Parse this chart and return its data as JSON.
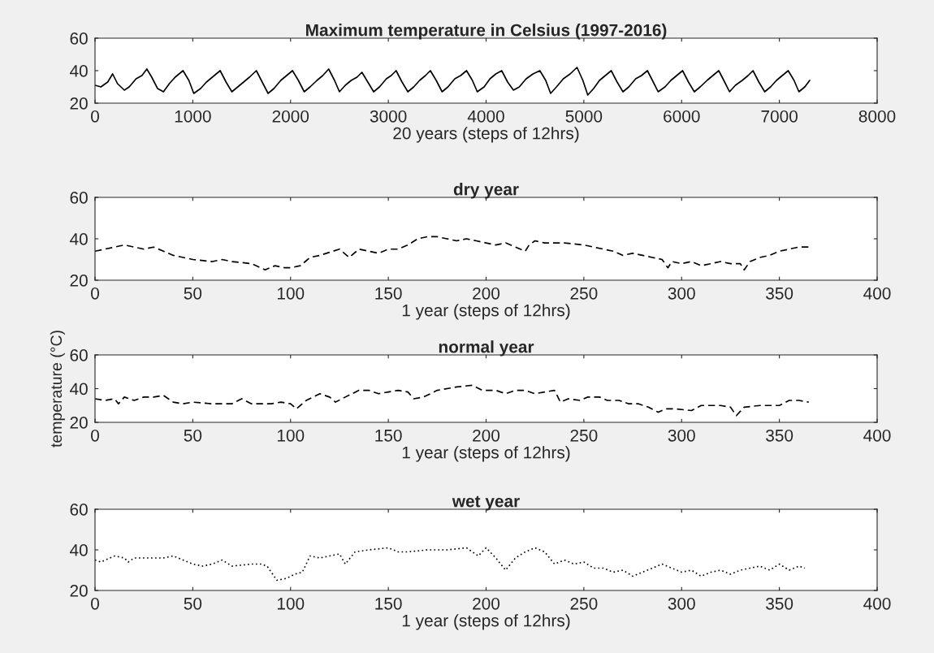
{
  "chart_data": [
    {
      "type": "line",
      "title": "Maximum temperature in Celsius (1997-2016)",
      "xlabel": "20 years (steps of 12hrs)",
      "xlim": [
        0,
        8000
      ],
      "xticks": [
        0,
        1000,
        2000,
        3000,
        4000,
        5000,
        6000,
        7000,
        8000
      ],
      "ylim": [
        20,
        60
      ],
      "yticks": [
        20,
        40,
        60
      ],
      "grid": false,
      "line_style": "solid",
      "series": [
        {
          "color": "#000000",
          "x": [
            0,
            60,
            130,
            180,
            230,
            300,
            350,
            420,
            480,
            530,
            580,
            640,
            700,
            760,
            820,
            900,
            960,
            1010,
            1080,
            1140,
            1200,
            1280,
            1340,
            1400,
            1460,
            1520,
            1580,
            1650,
            1710,
            1770,
            1830,
            1900,
            1960,
            2020,
            2080,
            2140,
            2200,
            2270,
            2330,
            2390,
            2450,
            2500,
            2560,
            2620,
            2680,
            2730,
            2790,
            2850,
            2910,
            2980,
            3030,
            3080,
            3140,
            3200,
            3260,
            3320,
            3380,
            3430,
            3490,
            3550,
            3610,
            3680,
            3740,
            3800,
            3860,
            3910,
            3980,
            4040,
            4100,
            4160,
            4220,
            4280,
            4340,
            4410,
            4480,
            4550,
            4610,
            4660,
            4720,
            4790,
            4860,
            4930,
            4990,
            5040,
            5100,
            5160,
            5220,
            5280,
            5340,
            5400,
            5460,
            5530,
            5590,
            5650,
            5710,
            5760,
            5830,
            5890,
            5950,
            6010,
            6070,
            6130,
            6190,
            6260,
            6320,
            6380,
            6440,
            6490,
            6550,
            6620,
            6680,
            6730,
            6790,
            6850,
            6910,
            6970,
            7030,
            7090,
            7150,
            7200,
            7260,
            7310
          ],
          "values": [
            31,
            30,
            33,
            38,
            32,
            28,
            30,
            35,
            37,
            41,
            36,
            29,
            27,
            32,
            36,
            40,
            34,
            26,
            29,
            33,
            36,
            40,
            33,
            27,
            30,
            33,
            36,
            40,
            33,
            26,
            29,
            34,
            37,
            40,
            34,
            27,
            30,
            34,
            37,
            41,
            34,
            27,
            31,
            34,
            36,
            39,
            33,
            27,
            30,
            35,
            37,
            40,
            33,
            27,
            30,
            34,
            37,
            40,
            34,
            27,
            30,
            35,
            37,
            40,
            34,
            27,
            30,
            35,
            38,
            40,
            33,
            28,
            30,
            35,
            38,
            40,
            34,
            26,
            30,
            35,
            38,
            42,
            34,
            25,
            29,
            34,
            37,
            40,
            33,
            27,
            30,
            35,
            37,
            40,
            33,
            27,
            30,
            34,
            37,
            40,
            33,
            27,
            30,
            34,
            37,
            40,
            33,
            27,
            31,
            34,
            37,
            40,
            33,
            27,
            30,
            34,
            37,
            40,
            34,
            27,
            30,
            34
          ]
        }
      ]
    },
    {
      "type": "line",
      "title": "dry year",
      "xlabel": "1 year (steps of 12hrs)",
      "xlim": [
        0,
        400
      ],
      "xticks": [
        0,
        50,
        100,
        150,
        200,
        250,
        300,
        350,
        400
      ],
      "ylim": [
        20,
        60
      ],
      "yticks": [
        20,
        40,
        60
      ],
      "grid": false,
      "line_style": "dashed",
      "series": [
        {
          "color": "#000000",
          "x": [
            0,
            5,
            10,
            15,
            20,
            25,
            30,
            35,
            40,
            50,
            60,
            65,
            70,
            80,
            87,
            92,
            97,
            100,
            105,
            110,
            115,
            125,
            130,
            135,
            140,
            145,
            150,
            155,
            160,
            165,
            170,
            175,
            180,
            185,
            190,
            195,
            200,
            205,
            210,
            215,
            220,
            222,
            225,
            230,
            240,
            250,
            260,
            265,
            270,
            275,
            280,
            285,
            290,
            293,
            295,
            300,
            305,
            310,
            320,
            325,
            330,
            332,
            335,
            340,
            345,
            350,
            355,
            360,
            365
          ],
          "values": [
            34,
            35,
            36,
            37,
            36,
            35,
            36,
            34,
            32,
            30,
            29,
            30,
            29,
            28,
            25,
            27,
            26,
            26,
            27,
            31,
            32,
            35,
            31,
            35,
            34,
            33,
            35,
            35,
            37,
            40,
            41,
            41,
            40,
            39,
            40,
            39,
            38,
            37,
            38,
            36,
            34,
            37,
            39,
            38,
            38,
            37,
            35,
            34,
            32,
            33,
            32,
            31,
            30,
            26,
            29,
            28,
            29,
            27,
            29,
            28,
            28,
            25,
            29,
            31,
            32,
            34,
            35,
            36,
            36
          ]
        }
      ]
    },
    {
      "type": "line",
      "title": "normal year",
      "xlabel": "1 year (steps of 12hrs)",
      "ylabel": "temperature (°C)",
      "xlim": [
        0,
        400
      ],
      "xticks": [
        0,
        50,
        100,
        150,
        200,
        250,
        300,
        350,
        400
      ],
      "ylim": [
        20,
        60
      ],
      "yticks": [
        20,
        40,
        60
      ],
      "grid": false,
      "line_style": "dashed",
      "series": [
        {
          "color": "#000000",
          "x": [
            0,
            5,
            10,
            12,
            15,
            20,
            25,
            30,
            35,
            40,
            45,
            50,
            60,
            70,
            75,
            80,
            90,
            95,
            100,
            103,
            108,
            115,
            120,
            123,
            128,
            135,
            140,
            145,
            150,
            155,
            160,
            163,
            168,
            175,
            185,
            193,
            198,
            205,
            210,
            215,
            220,
            225,
            230,
            235,
            238,
            242,
            248,
            252,
            258,
            262,
            268,
            273,
            278,
            283,
            288,
            292,
            297,
            305,
            310,
            315,
            320,
            325,
            328,
            332,
            340,
            350,
            355,
            360,
            365
          ],
          "values": [
            34,
            33,
            34,
            31,
            35,
            33,
            35,
            35,
            36,
            32,
            31,
            32,
            31,
            31,
            34,
            31,
            31,
            32,
            31,
            28,
            33,
            37,
            35,
            32,
            35,
            39,
            39,
            37,
            38,
            39,
            38,
            34,
            35,
            39,
            41,
            42,
            39,
            39,
            37,
            39,
            39,
            37,
            38,
            39,
            32,
            34,
            33,
            35,
            35,
            33,
            33,
            31,
            31,
            29,
            26,
            28,
            28,
            27,
            30,
            30,
            30,
            29,
            24,
            29,
            30,
            30,
            33,
            33,
            32
          ]
        }
      ]
    },
    {
      "type": "line",
      "title": "wet year",
      "xlabel": "1 year (steps of 12hrs)",
      "xlim": [
        0,
        400
      ],
      "xticks": [
        0,
        50,
        100,
        150,
        200,
        250,
        300,
        350,
        400
      ],
      "ylim": [
        20,
        60
      ],
      "yticks": [
        20,
        40,
        60
      ],
      "grid": false,
      "line_style": "dotted",
      "series": [
        {
          "color": "#000000",
          "x": [
            0,
            3,
            10,
            15,
            17,
            20,
            30,
            35,
            40,
            45,
            50,
            55,
            60,
            65,
            70,
            80,
            85,
            88,
            93,
            98,
            102,
            106,
            110,
            115,
            120,
            125,
            128,
            133,
            140,
            150,
            155,
            160,
            170,
            180,
            190,
            196,
            200,
            205,
            210,
            215,
            220,
            225,
            230,
            235,
            240,
            245,
            250,
            255,
            260,
            265,
            270,
            275,
            280,
            285,
            290,
            295,
            300,
            305,
            310,
            315,
            320,
            325,
            330,
            335,
            340,
            345,
            350,
            355,
            360,
            363
          ],
          "values": [
            35,
            34,
            37,
            36,
            34,
            36,
            36,
            36,
            37,
            35,
            33,
            32,
            33,
            35,
            32,
            33,
            33,
            32,
            25,
            26,
            28,
            29,
            37,
            36,
            37,
            38,
            33,
            39,
            40,
            41,
            39,
            39,
            40,
            40,
            41,
            37,
            41,
            36,
            30,
            36,
            39,
            41,
            39,
            33,
            35,
            33,
            34,
            31,
            31,
            29,
            30,
            27,
            29,
            31,
            33,
            31,
            29,
            30,
            27,
            29,
            30,
            28,
            30,
            31,
            32,
            30,
            33,
            30,
            32,
            31
          ]
        }
      ]
    }
  ]
}
